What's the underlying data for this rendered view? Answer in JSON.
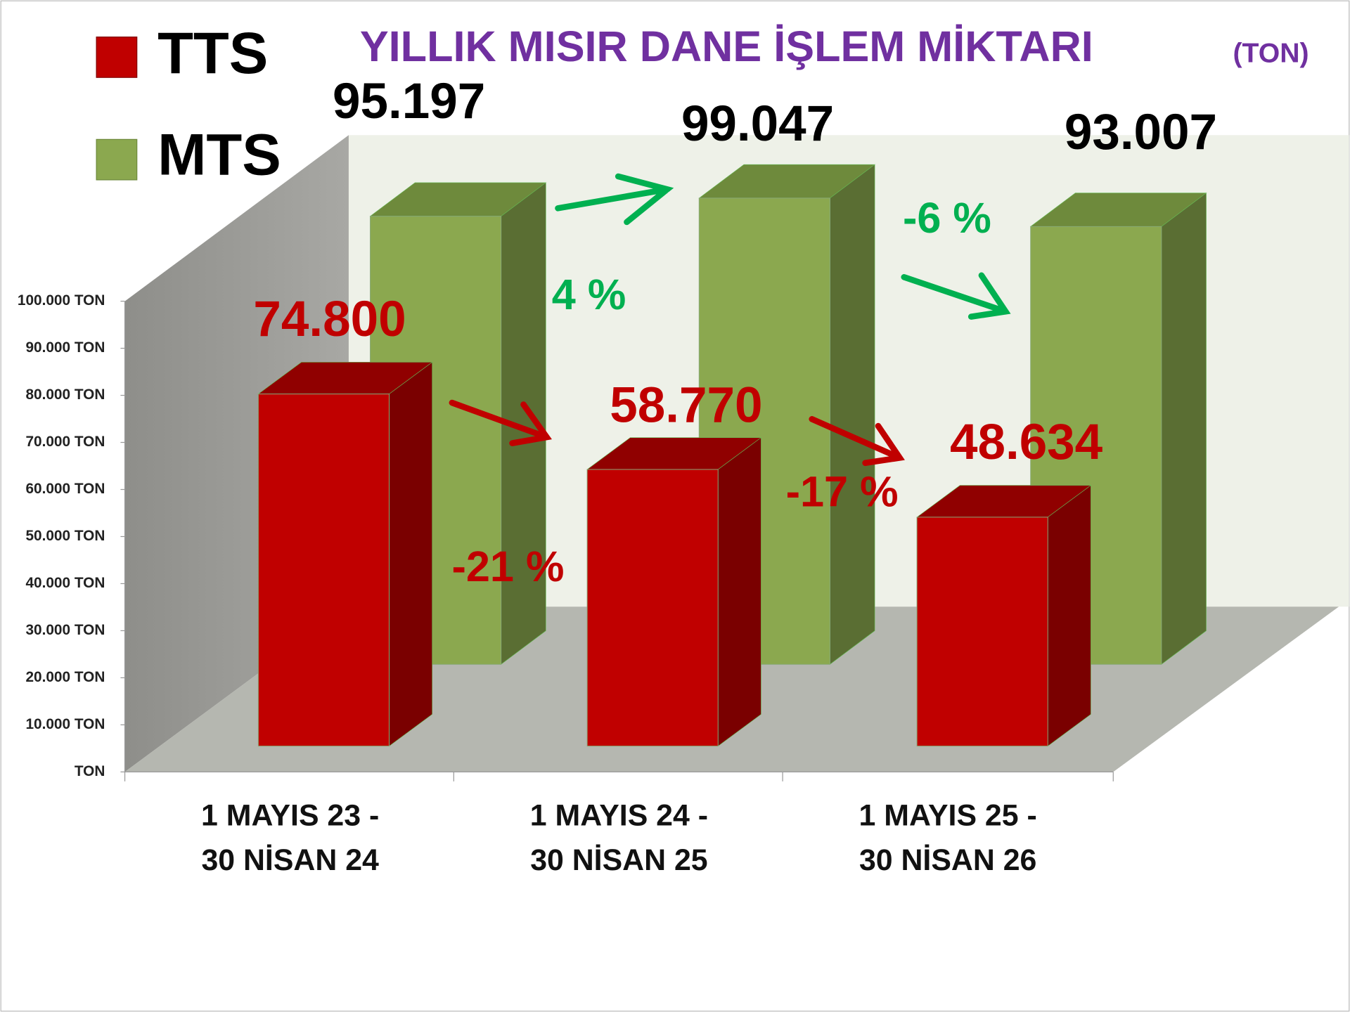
{
  "chart_data": {
    "type": "bar3d",
    "title": "YILLIK MISIR DANE İŞLEM MİKTARI",
    "subtitle": "(TON)",
    "categories": [
      "1 MAYIS 23 -\n30 NİSAN 24",
      "1 MAYIS 24 -\n30 NİSAN 25",
      "1 MAYIS 25 -\n30 NİSAN 26"
    ],
    "series": [
      {
        "name": "TTS",
        "color": "#c00000",
        "values": [
          74800,
          58770,
          48634
        ],
        "value_labels": [
          "74.800",
          "58.770",
          "48.634"
        ]
      },
      {
        "name": "MTS",
        "color": "#8ba84f",
        "values": [
          95197,
          99047,
          93007
        ],
        "value_labels": [
          "95.197",
          "99.047",
          "93.007"
        ]
      }
    ],
    "annotations": [
      "-21 %",
      "-17 %",
      "4 %",
      "-6 %"
    ],
    "ylim": [
      0,
      100000
    ],
    "yticks": [
      {
        "value": 0,
        "label": "TON"
      },
      {
        "value": 10000,
        "label": "10.000 TON"
      },
      {
        "value": 20000,
        "label": "20.000 TON"
      },
      {
        "value": 30000,
        "label": "30.000 TON"
      },
      {
        "value": 40000,
        "label": "40.000 TON"
      },
      {
        "value": 50000,
        "label": "50.000 TON"
      },
      {
        "value": 60000,
        "label": "60.000 TON"
      },
      {
        "value": 70000,
        "label": "70.000 TON"
      },
      {
        "value": 80000,
        "label": "80.000 TON"
      },
      {
        "value": 90000,
        "label": "90.000 TON"
      },
      {
        "value": 100000,
        "label": "100.000 TON"
      }
    ],
    "grid": false
  }
}
